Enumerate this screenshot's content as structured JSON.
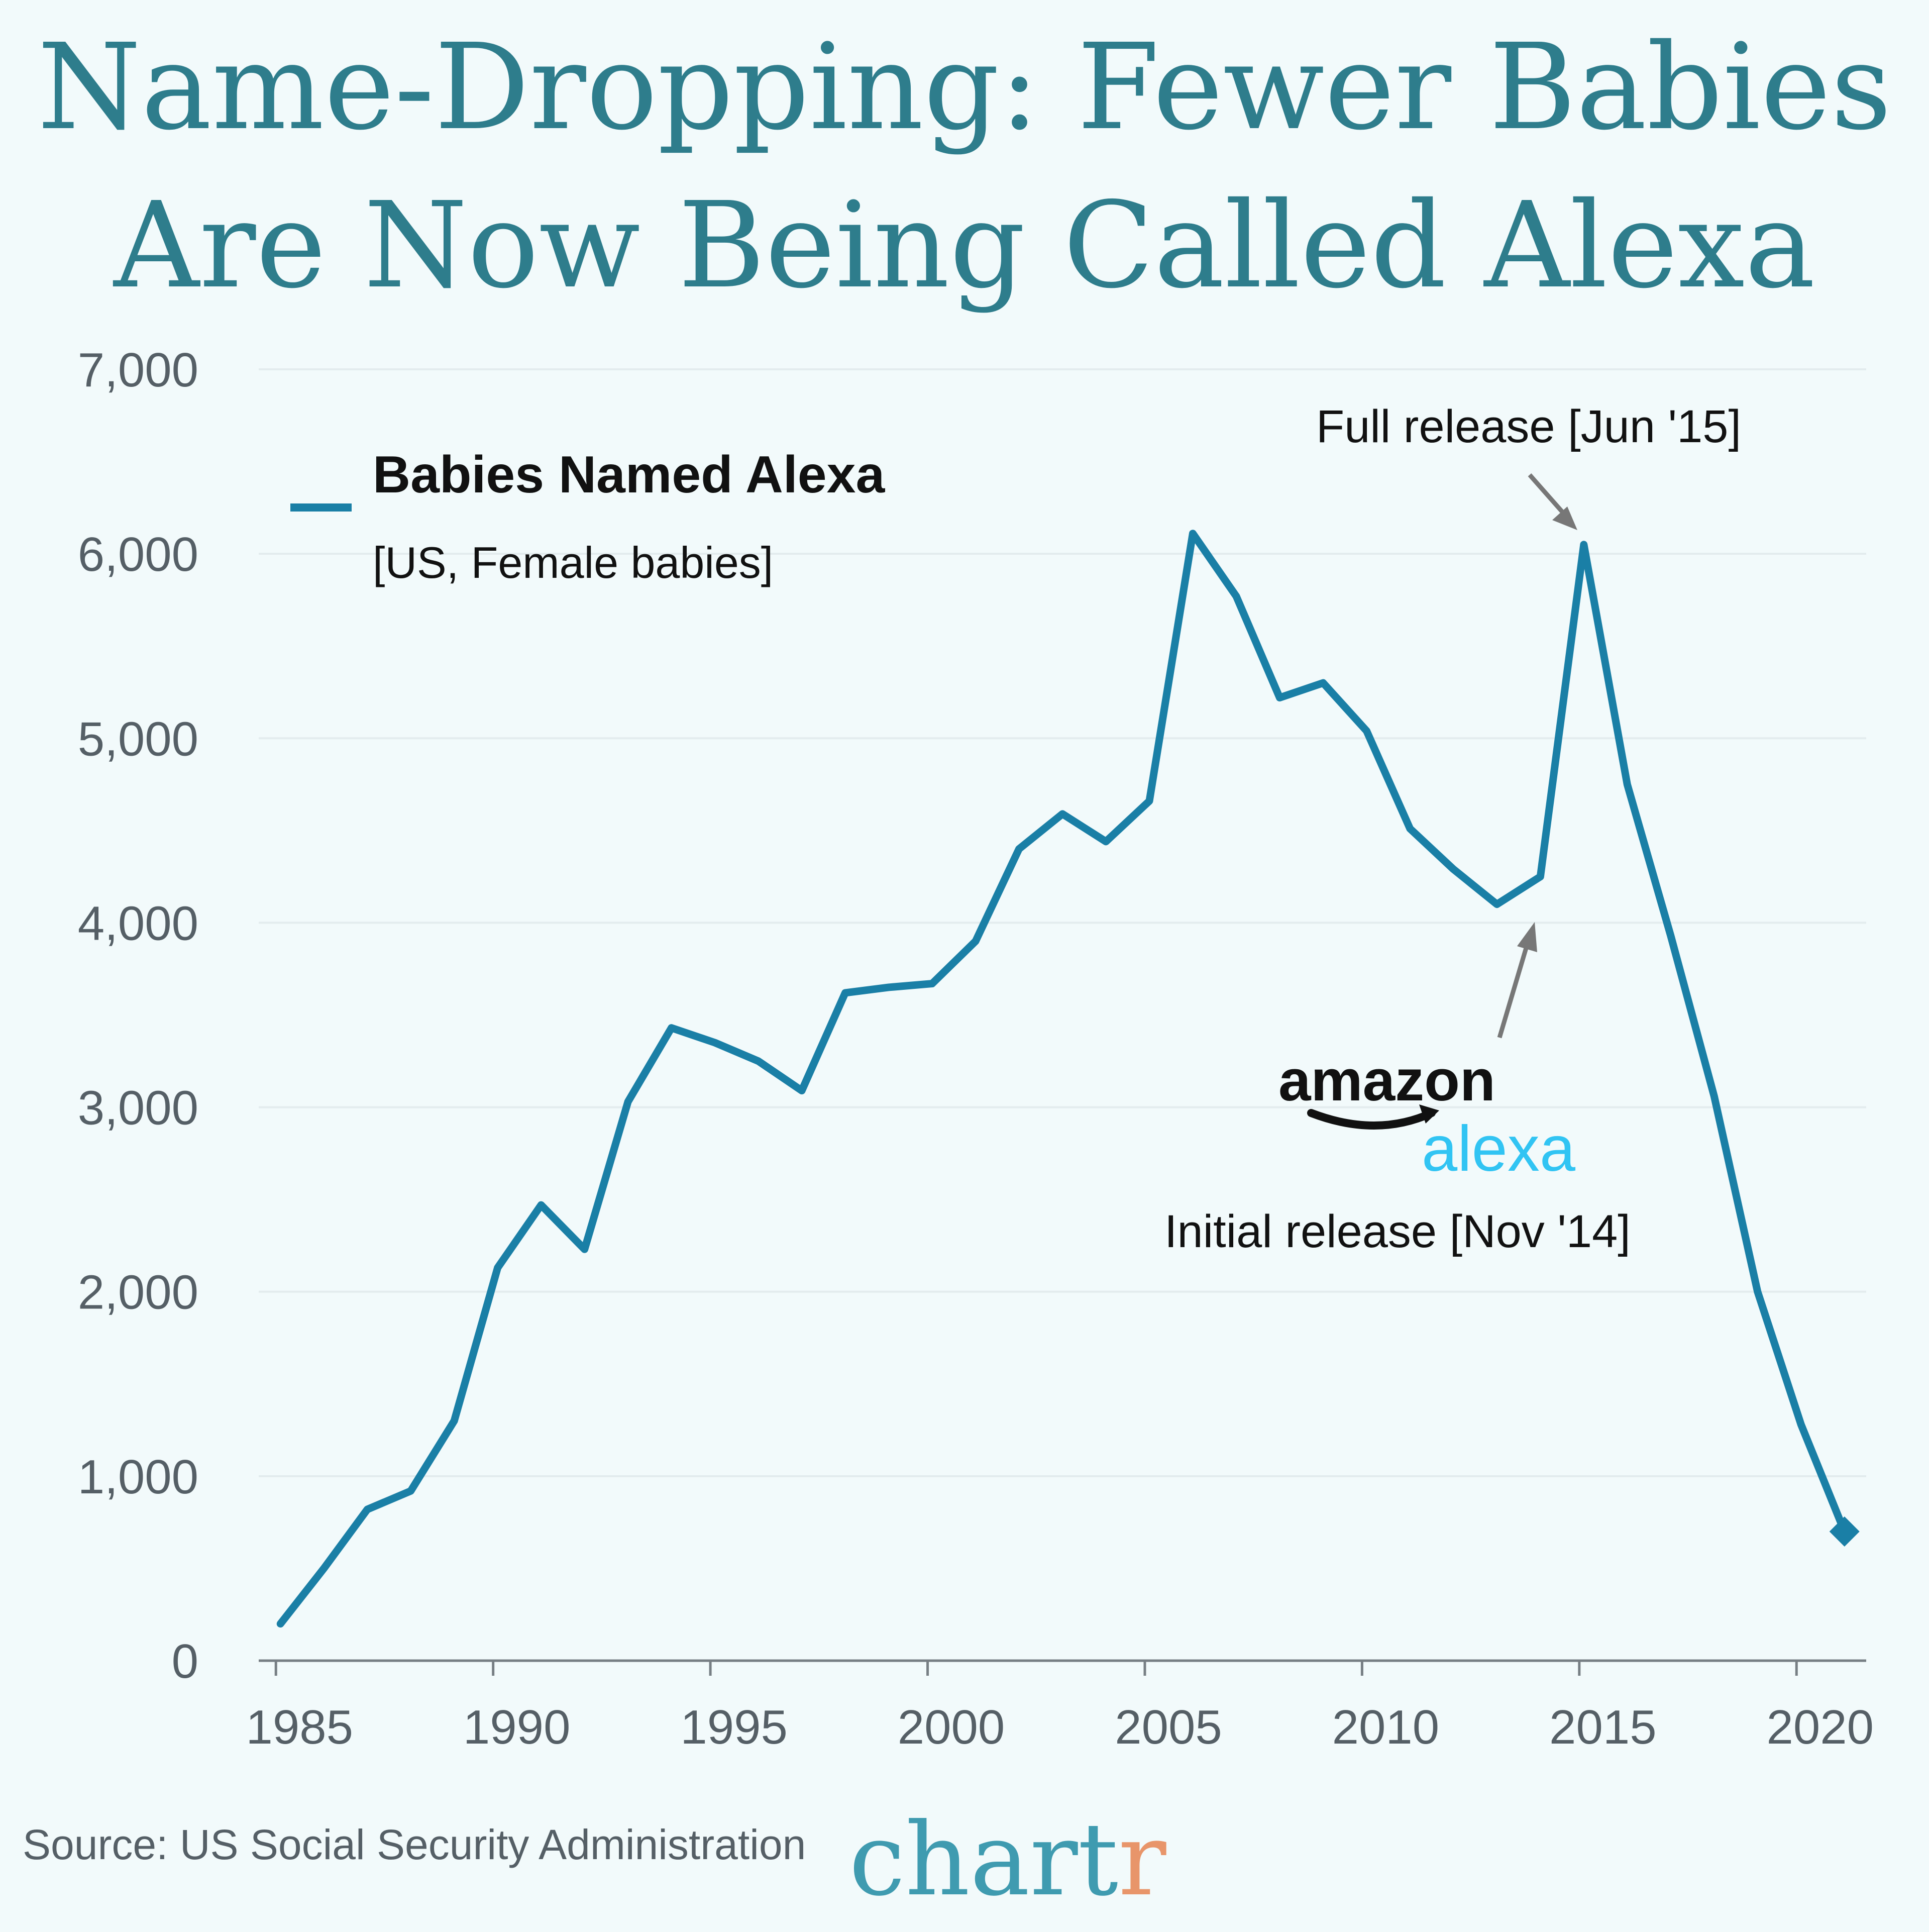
{
  "title_line1": "Name-Dropping: Fewer Babies",
  "title_line2": "Are Now Being Called Alexa",
  "legend": {
    "series_name": "Babies Named Alexa",
    "subtitle": "[US, Female babies]"
  },
  "annotations": {
    "full_release": "Full release [Jun '15]",
    "initial_release": "Initial release [Nov '14]",
    "logo_amazon": "amazon",
    "logo_alexa": "alexa"
  },
  "source": "Source: US Social Security Administration",
  "brand": {
    "prefix": "chart",
    "suffix": "r"
  },
  "colors": {
    "line": "#1a7fa6",
    "title": "#2e7d8c",
    "brand_main": "#3f9bb0",
    "brand_accent": "#e8956a",
    "alexa_logo": "#31c4f3",
    "grid": "#e3ecee",
    "arrow": "#777777"
  },
  "chart_data": {
    "type": "line",
    "title": "Name-Dropping: Fewer Babies Are Now Being Called Alexa",
    "xlabel": "",
    "ylabel": "",
    "ylim": [
      0,
      7000
    ],
    "yticks": [
      0,
      1000,
      2000,
      3000,
      4000,
      5000,
      6000,
      7000
    ],
    "ytick_labels": [
      "0",
      "1,000",
      "2,000",
      "3,000",
      "4,000",
      "5,000",
      "6,000",
      "7,000"
    ],
    "xticks": [
      1985,
      1990,
      1995,
      2000,
      2005,
      2010,
      2015,
      2020
    ],
    "xtick_labels": [
      "1985",
      "1990",
      "1995",
      "2000",
      "2005",
      "2010",
      "2015",
      "2020"
    ],
    "grid": true,
    "legend_position": "top-left",
    "series": [
      {
        "name": "Babies Named Alexa",
        "x": [
          1985,
          1986,
          1987,
          1988,
          1989,
          1990,
          1991,
          1992,
          1993,
          1994,
          1995,
          1996,
          1997,
          1998,
          1999,
          2000,
          2001,
          2002,
          2003,
          2004,
          2005,
          2006,
          2007,
          2008,
          2009,
          2010,
          2011,
          2012,
          2013,
          2014,
          2015,
          2016,
          2017,
          2018,
          2019,
          2020,
          2021
        ],
        "values": [
          200,
          500,
          820,
          920,
          1300,
          2130,
          2470,
          2230,
          3030,
          3430,
          3350,
          3250,
          3090,
          3620,
          3650,
          3670,
          3900,
          4400,
          4590,
          4440,
          4660,
          6110,
          5770,
          5220,
          5300,
          5040,
          4510,
          4290,
          4100,
          4250,
          6050,
          4750,
          3930,
          3060,
          2000,
          1280,
          700
        ]
      }
    ]
  }
}
